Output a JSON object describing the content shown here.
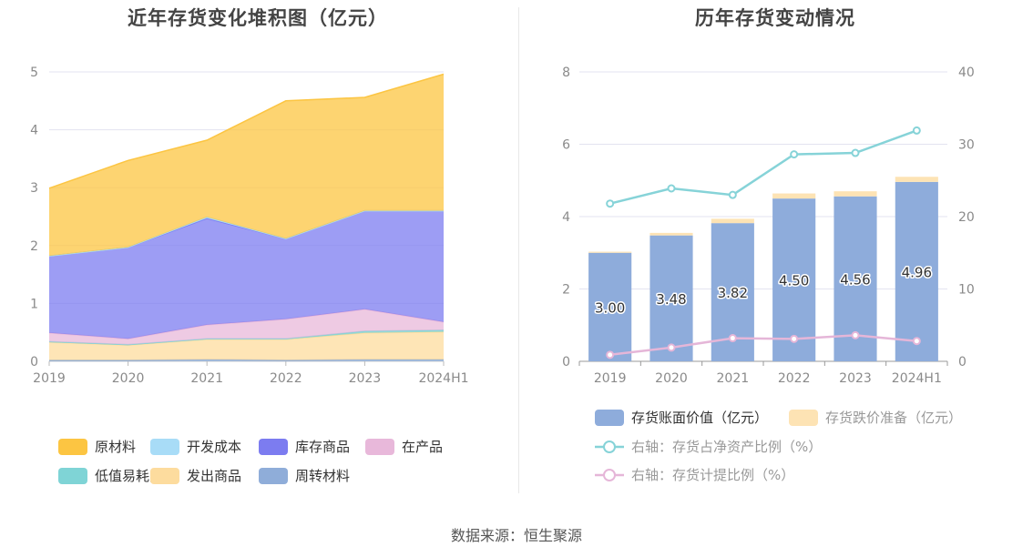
{
  "chart_data": [
    {
      "type": "area",
      "stacked": true,
      "title": "近年存货变化堆积图（亿元）",
      "x": [
        "2019",
        "2020",
        "2021",
        "2022",
        "2023",
        "2024H1"
      ],
      "ylim": [
        0,
        5
      ],
      "yticks": [
        "0",
        "1",
        "2",
        "3",
        "4",
        "5"
      ],
      "grid": true,
      "legend_position": "bottom",
      "series": [
        {
          "name": "周转材料",
          "color": "#8fadd9",
          "values": [
            0.02,
            0.02,
            0.03,
            0.02,
            0.03,
            0.03
          ]
        },
        {
          "name": "发出商品",
          "color": "#fddc9e",
          "values": [
            0.31,
            0.26,
            0.35,
            0.36,
            0.46,
            0.48
          ]
        },
        {
          "name": "低值易耗品",
          "color": "#7fd4d6",
          "values": [
            0.01,
            0.01,
            0.01,
            0.01,
            0.03,
            0.03
          ]
        },
        {
          "name": "在产品",
          "color": "#e8b8da",
          "values": [
            0.15,
            0.1,
            0.24,
            0.34,
            0.38,
            0.14
          ]
        },
        {
          "name": "库存商品",
          "color": "#7c7cf0",
          "values": [
            1.33,
            1.58,
            1.84,
            1.39,
            1.7,
            1.92
          ]
        },
        {
          "name": "开发成本",
          "color": "#a8dcf7",
          "values": [
            0.0,
            0.0,
            0.02,
            0.0,
            0.0,
            0.0
          ]
        },
        {
          "name": "原材料",
          "color": "#fcc542",
          "values": [
            1.17,
            1.5,
            1.33,
            2.38,
            1.96,
            2.36
          ]
        }
      ],
      "legend": [
        {
          "name": "原材料",
          "color": "#fcc542"
        },
        {
          "name": "开发成本",
          "color": "#a8dcf7"
        },
        {
          "name": "库存商品",
          "color": "#7c7cf0"
        },
        {
          "name": "在产品",
          "color": "#e8b8da"
        },
        {
          "name": "低值易耗品",
          "color": "#7fd4d6"
        },
        {
          "name": "发出商品",
          "color": "#fddc9e"
        },
        {
          "name": "周转材料",
          "color": "#8fadd9"
        }
      ]
    },
    {
      "type": "bar",
      "title": "历年存货变动情况",
      "categories": [
        "2019",
        "2020",
        "2021",
        "2022",
        "2023",
        "2024H1"
      ],
      "ylim_left": [
        0,
        8
      ],
      "yticks_left": [
        "0",
        "2",
        "4",
        "6",
        "8"
      ],
      "ylim_right": [
        0,
        40
      ],
      "yticks_right": [
        "0",
        "10",
        "20",
        "30",
        "40"
      ],
      "grid": true,
      "legend_position": "bottom",
      "series": [
        {
          "name": "存货账面价值（亿元）",
          "type": "bar",
          "color": "#8eacdb",
          "axis": "left",
          "values": [
            3.0,
            3.48,
            3.82,
            4.5,
            4.56,
            4.96
          ],
          "labels": [
            "3.00",
            "3.48",
            "3.82",
            "4.50",
            "4.56",
            "4.96"
          ]
        },
        {
          "name": "存货跌价准备（亿元）",
          "type": "bar",
          "color": "#fde3b4",
          "axis": "left",
          "values": [
            0.03,
            0.07,
            0.12,
            0.14,
            0.14,
            0.14
          ]
        },
        {
          "name": "右轴：存货占净资产比例（%）",
          "type": "line",
          "color": "#86d3d8",
          "axis": "right",
          "values": [
            21.8,
            23.9,
            23.0,
            28.6,
            28.8,
            31.9
          ]
        },
        {
          "name": "右轴：存货计提比例（%）",
          "type": "line",
          "color": "#e5b6d8",
          "axis": "right",
          "values": [
            0.9,
            1.9,
            3.2,
            3.1,
            3.6,
            2.8
          ]
        }
      ]
    }
  ],
  "footer": {
    "source": "数据来源：恒生聚源"
  }
}
